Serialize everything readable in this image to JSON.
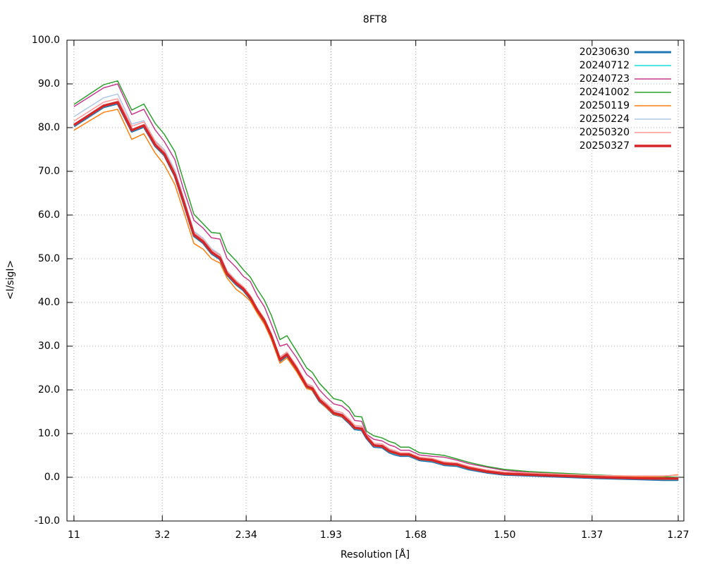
{
  "chart_data": {
    "type": "line",
    "title": "8FT8",
    "xlabel": "Resolution [Å]",
    "ylabel": "<I/sigI>",
    "x": [
      0.0083,
      0.0383,
      0.0525,
      0.0668,
      0.079,
      0.0904,
      0.0997,
      0.1104,
      0.119,
      0.1297,
      0.139,
      0.1475,
      0.1561,
      0.1632,
      0.1725,
      0.1797,
      0.1868,
      0.1939,
      0.2011,
      0.2082,
      0.2168,
      0.2239,
      0.2332,
      0.2439,
      0.2496,
      0.2568,
      0.2639,
      0.2711,
      0.2796,
      0.2868,
      0.2925,
      0.2996,
      0.3046,
      0.3118,
      0.3203,
      0.3275,
      0.3332,
      0.3389,
      0.3475,
      0.3582,
      0.371,
      0.3832,
      0.396,
      0.4081,
      0.426,
      0.4438,
      0.4688,
      0.5045,
      0.5402,
      0.5759,
      0.6045,
      0.6202
    ],
    "xlim": [
      0.0012,
      0.6257
    ],
    "xticks": [
      {
        "value": 0.00826,
        "label": "11"
      },
      {
        "value": 0.0977,
        "label": "3.2"
      },
      {
        "value": 0.1826,
        "label": "2.34"
      },
      {
        "value": 0.2685,
        "label": "1.93"
      },
      {
        "value": 0.3543,
        "label": "1.68"
      },
      {
        "value": 0.4444,
        "label": "1.50"
      },
      {
        "value": 0.5328,
        "label": "1.37"
      },
      {
        "value": 0.62,
        "label": "1.27"
      }
    ],
    "ylim": [
      -10,
      100
    ],
    "yticks": [
      {
        "value": -10,
        "label": "-10.0"
      },
      {
        "value": 0,
        "label": "0.0"
      },
      {
        "value": 10,
        "label": "10.0"
      },
      {
        "value": 20,
        "label": "20.0"
      },
      {
        "value": 30,
        "label": "30.0"
      },
      {
        "value": 40,
        "label": "40.0"
      },
      {
        "value": 50,
        "label": "50.0"
      },
      {
        "value": 60,
        "label": "60.0"
      },
      {
        "value": 70,
        "label": "70.0"
      },
      {
        "value": 80,
        "label": "80.0"
      },
      {
        "value": 90,
        "label": "90.0"
      },
      {
        "value": 100,
        "label": "100.0"
      }
    ],
    "grid": true,
    "legend": "top-right",
    "series": [
      {
        "name": "20230630",
        "color": "#1f77b4",
        "line_width": 3,
        "values": [
          80.3,
          84.7,
          85.5,
          79.1,
          80.2,
          75.8,
          73.7,
          68.9,
          62.9,
          55.2,
          53.6,
          51.2,
          49.9,
          46.3,
          44.1,
          42.8,
          40.8,
          37.9,
          35.5,
          32.0,
          26.6,
          27.8,
          24.7,
          20.5,
          20.0,
          17.4,
          16.0,
          14.4,
          13.9,
          12.4,
          11.0,
          10.8,
          8.9,
          7.0,
          6.8,
          5.7,
          5.2,
          4.9,
          4.9,
          3.9,
          3.6,
          2.8,
          2.6,
          1.8,
          1.1,
          0.6,
          0.4,
          0.1,
          -0.2,
          -0.4,
          -0.6,
          -0.6
        ]
      },
      {
        "name": "20240712",
        "color": "#17dede",
        "line_width": 1.5,
        "values": [
          80.4,
          84.8,
          85.6,
          79.2,
          80.3,
          75.9,
          73.8,
          69.0,
          63.0,
          55.3,
          53.7,
          51.3,
          50.0,
          46.4,
          44.2,
          42.9,
          40.9,
          38.0,
          35.6,
          32.1,
          26.7,
          27.9,
          24.8,
          20.6,
          20.1,
          17.5,
          16.1,
          14.5,
          14.0,
          12.5,
          11.1,
          10.9,
          9.0,
          7.1,
          6.9,
          5.8,
          5.3,
          5.0,
          5.0,
          4.0,
          3.7,
          2.9,
          2.7,
          1.9,
          1.2,
          0.7,
          0.5,
          0.2,
          -0.1,
          -0.3,
          -0.5,
          -0.5
        ]
      },
      {
        "name": "20240723",
        "color": "#c53a8d",
        "line_width": 1.5,
        "values": [
          84.8,
          89.1,
          90.0,
          83.0,
          84.2,
          79.5,
          76.8,
          72.7,
          66.0,
          58.8,
          57.0,
          54.8,
          54.5,
          50.1,
          48.0,
          46.0,
          44.8,
          41.5,
          39.0,
          35.0,
          30.0,
          30.5,
          27.5,
          23.5,
          22.5,
          20.0,
          18.3,
          16.8,
          16.3,
          15.0,
          13.0,
          12.8,
          9.8,
          8.7,
          8.3,
          7.4,
          7.0,
          6.2,
          6.2,
          5.1,
          4.8,
          4.6,
          3.9,
          3.1,
          2.3,
          1.6,
          1.1,
          0.8,
          0.4,
          0.1,
          -0.1,
          0.0
        ]
      },
      {
        "name": "20241002",
        "color": "#2ca02c",
        "line_width": 1.5,
        "values": [
          85.3,
          89.8,
          90.7,
          84.0,
          85.4,
          81.0,
          78.5,
          74.5,
          68.0,
          60.2,
          58.0,
          56.0,
          55.8,
          51.7,
          49.5,
          47.5,
          45.8,
          43.0,
          40.5,
          37.0,
          31.5,
          32.4,
          29.0,
          25.0,
          24.0,
          21.5,
          19.8,
          18.0,
          17.5,
          16.0,
          14.0,
          13.8,
          10.5,
          9.5,
          9.0,
          8.2,
          7.8,
          6.9,
          6.9,
          5.6,
          5.3,
          5.0,
          4.2,
          3.4,
          2.5,
          1.8,
          1.3,
          0.9,
          0.5,
          0.2,
          0.1,
          0.0
        ]
      },
      {
        "name": "20250119",
        "color": "#ff7f0e",
        "line_width": 1.5,
        "values": [
          79.4,
          83.5,
          84.2,
          77.3,
          78.6,
          74.2,
          71.5,
          67.0,
          61.0,
          53.5,
          52.2,
          50.0,
          49.0,
          45.6,
          43.0,
          41.8,
          40.3,
          37.5,
          35.0,
          31.5,
          26.1,
          27.3,
          24.3,
          20.3,
          19.9,
          17.4,
          15.9,
          14.4,
          13.9,
          12.5,
          11.2,
          11.0,
          9.0,
          7.2,
          7.0,
          5.9,
          5.5,
          5.1,
          5.1,
          4.1,
          3.8,
          3.0,
          2.8,
          2.0,
          1.2,
          0.8,
          0.6,
          0.4,
          0.2,
          0.1,
          0.2,
          0.6
        ]
      },
      {
        "name": "20250224",
        "color": "#aec7e8",
        "line_width": 1.5,
        "values": [
          82.5,
          86.8,
          87.7,
          80.8,
          81.6,
          77.0,
          75.0,
          70.3,
          64.3,
          56.3,
          54.7,
          52.3,
          51.0,
          47.3,
          45.0,
          43.6,
          41.6,
          38.7,
          36.3,
          32.8,
          27.3,
          28.5,
          25.3,
          21.2,
          20.7,
          18.0,
          16.6,
          15.0,
          14.5,
          13.0,
          11.6,
          11.4,
          9.6,
          7.5,
          7.3,
          6.3,
          5.9,
          5.5,
          5.5,
          4.4,
          4.1,
          3.3,
          3.1,
          2.2,
          1.4,
          0.9,
          0.7,
          0.4,
          0.1,
          -0.1,
          -0.2,
          -0.1
        ]
      },
      {
        "name": "20250320",
        "color": "#ff9896",
        "line_width": 1.5,
        "values": [
          81.5,
          85.8,
          86.6,
          80.3,
          81.3,
          76.8,
          74.6,
          69.8,
          63.8,
          56.0,
          54.4,
          52.0,
          50.8,
          47.1,
          44.9,
          43.6,
          41.6,
          38.7,
          36.3,
          32.8,
          27.5,
          28.7,
          25.6,
          21.4,
          20.9,
          18.3,
          16.9,
          15.3,
          14.8,
          13.3,
          11.9,
          11.7,
          9.7,
          7.8,
          7.6,
          6.5,
          6.1,
          5.6,
          5.6,
          4.6,
          4.3,
          3.5,
          3.3,
          2.5,
          1.7,
          1.2,
          1.0,
          0.7,
          0.4,
          0.3,
          0.3,
          0.5
        ]
      },
      {
        "name": "20250327",
        "color": "#d62728",
        "line_width": 3.5,
        "values": [
          80.6,
          85.0,
          85.8,
          79.4,
          80.5,
          76.1,
          74.0,
          69.2,
          63.2,
          55.5,
          53.9,
          51.5,
          50.2,
          46.6,
          44.4,
          43.1,
          41.1,
          38.2,
          35.8,
          32.3,
          26.9,
          28.1,
          25.0,
          20.8,
          20.3,
          17.7,
          16.3,
          14.7,
          14.2,
          12.7,
          11.3,
          11.1,
          9.2,
          7.3,
          7.1,
          6.0,
          5.6,
          5.2,
          5.2,
          4.2,
          3.9,
          3.1,
          2.9,
          2.1,
          1.3,
          0.8,
          0.6,
          0.3,
          0.0,
          -0.2,
          -0.3,
          -0.3
        ]
      }
    ]
  }
}
